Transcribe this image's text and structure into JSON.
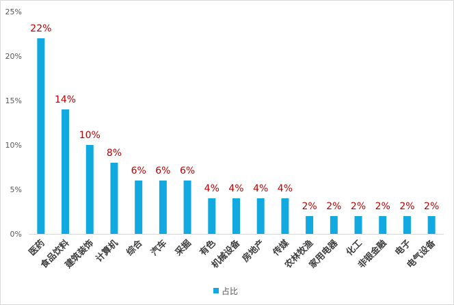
{
  "chart_data": {
    "type": "bar",
    "categories": [
      "医药",
      "食品饮料",
      "建筑装饰",
      "计算机",
      "综合",
      "汽车",
      "采掘",
      "有色",
      "机械设备",
      "房地产",
      "传媒",
      "农林牧渔",
      "家用电器",
      "化工",
      "非银金融",
      "电子",
      "电气设备"
    ],
    "series": [
      {
        "name": "占比",
        "values": [
          22,
          14,
          10,
          8,
          6,
          6,
          6,
          4,
          4,
          4,
          4,
          2,
          2,
          2,
          2,
          2,
          2
        ],
        "data_labels": [
          "22%",
          "14%",
          "10%",
          "8%",
          "6%",
          "6%",
          "6%",
          "4%",
          "4%",
          "4%",
          "4%",
          "2%",
          "2%",
          "2%",
          "2%",
          "2%",
          "2%"
        ]
      }
    ],
    "y_ticks": [
      "0%",
      "5%",
      "10%",
      "15%",
      "20%",
      "25%"
    ],
    "ylim": [
      0,
      25
    ],
    "grid": false,
    "legend_position": "bottom",
    "colors": {
      "bar": "#12a9e0",
      "data_label": "#c00000",
      "axis": "#d9d9d9"
    }
  }
}
